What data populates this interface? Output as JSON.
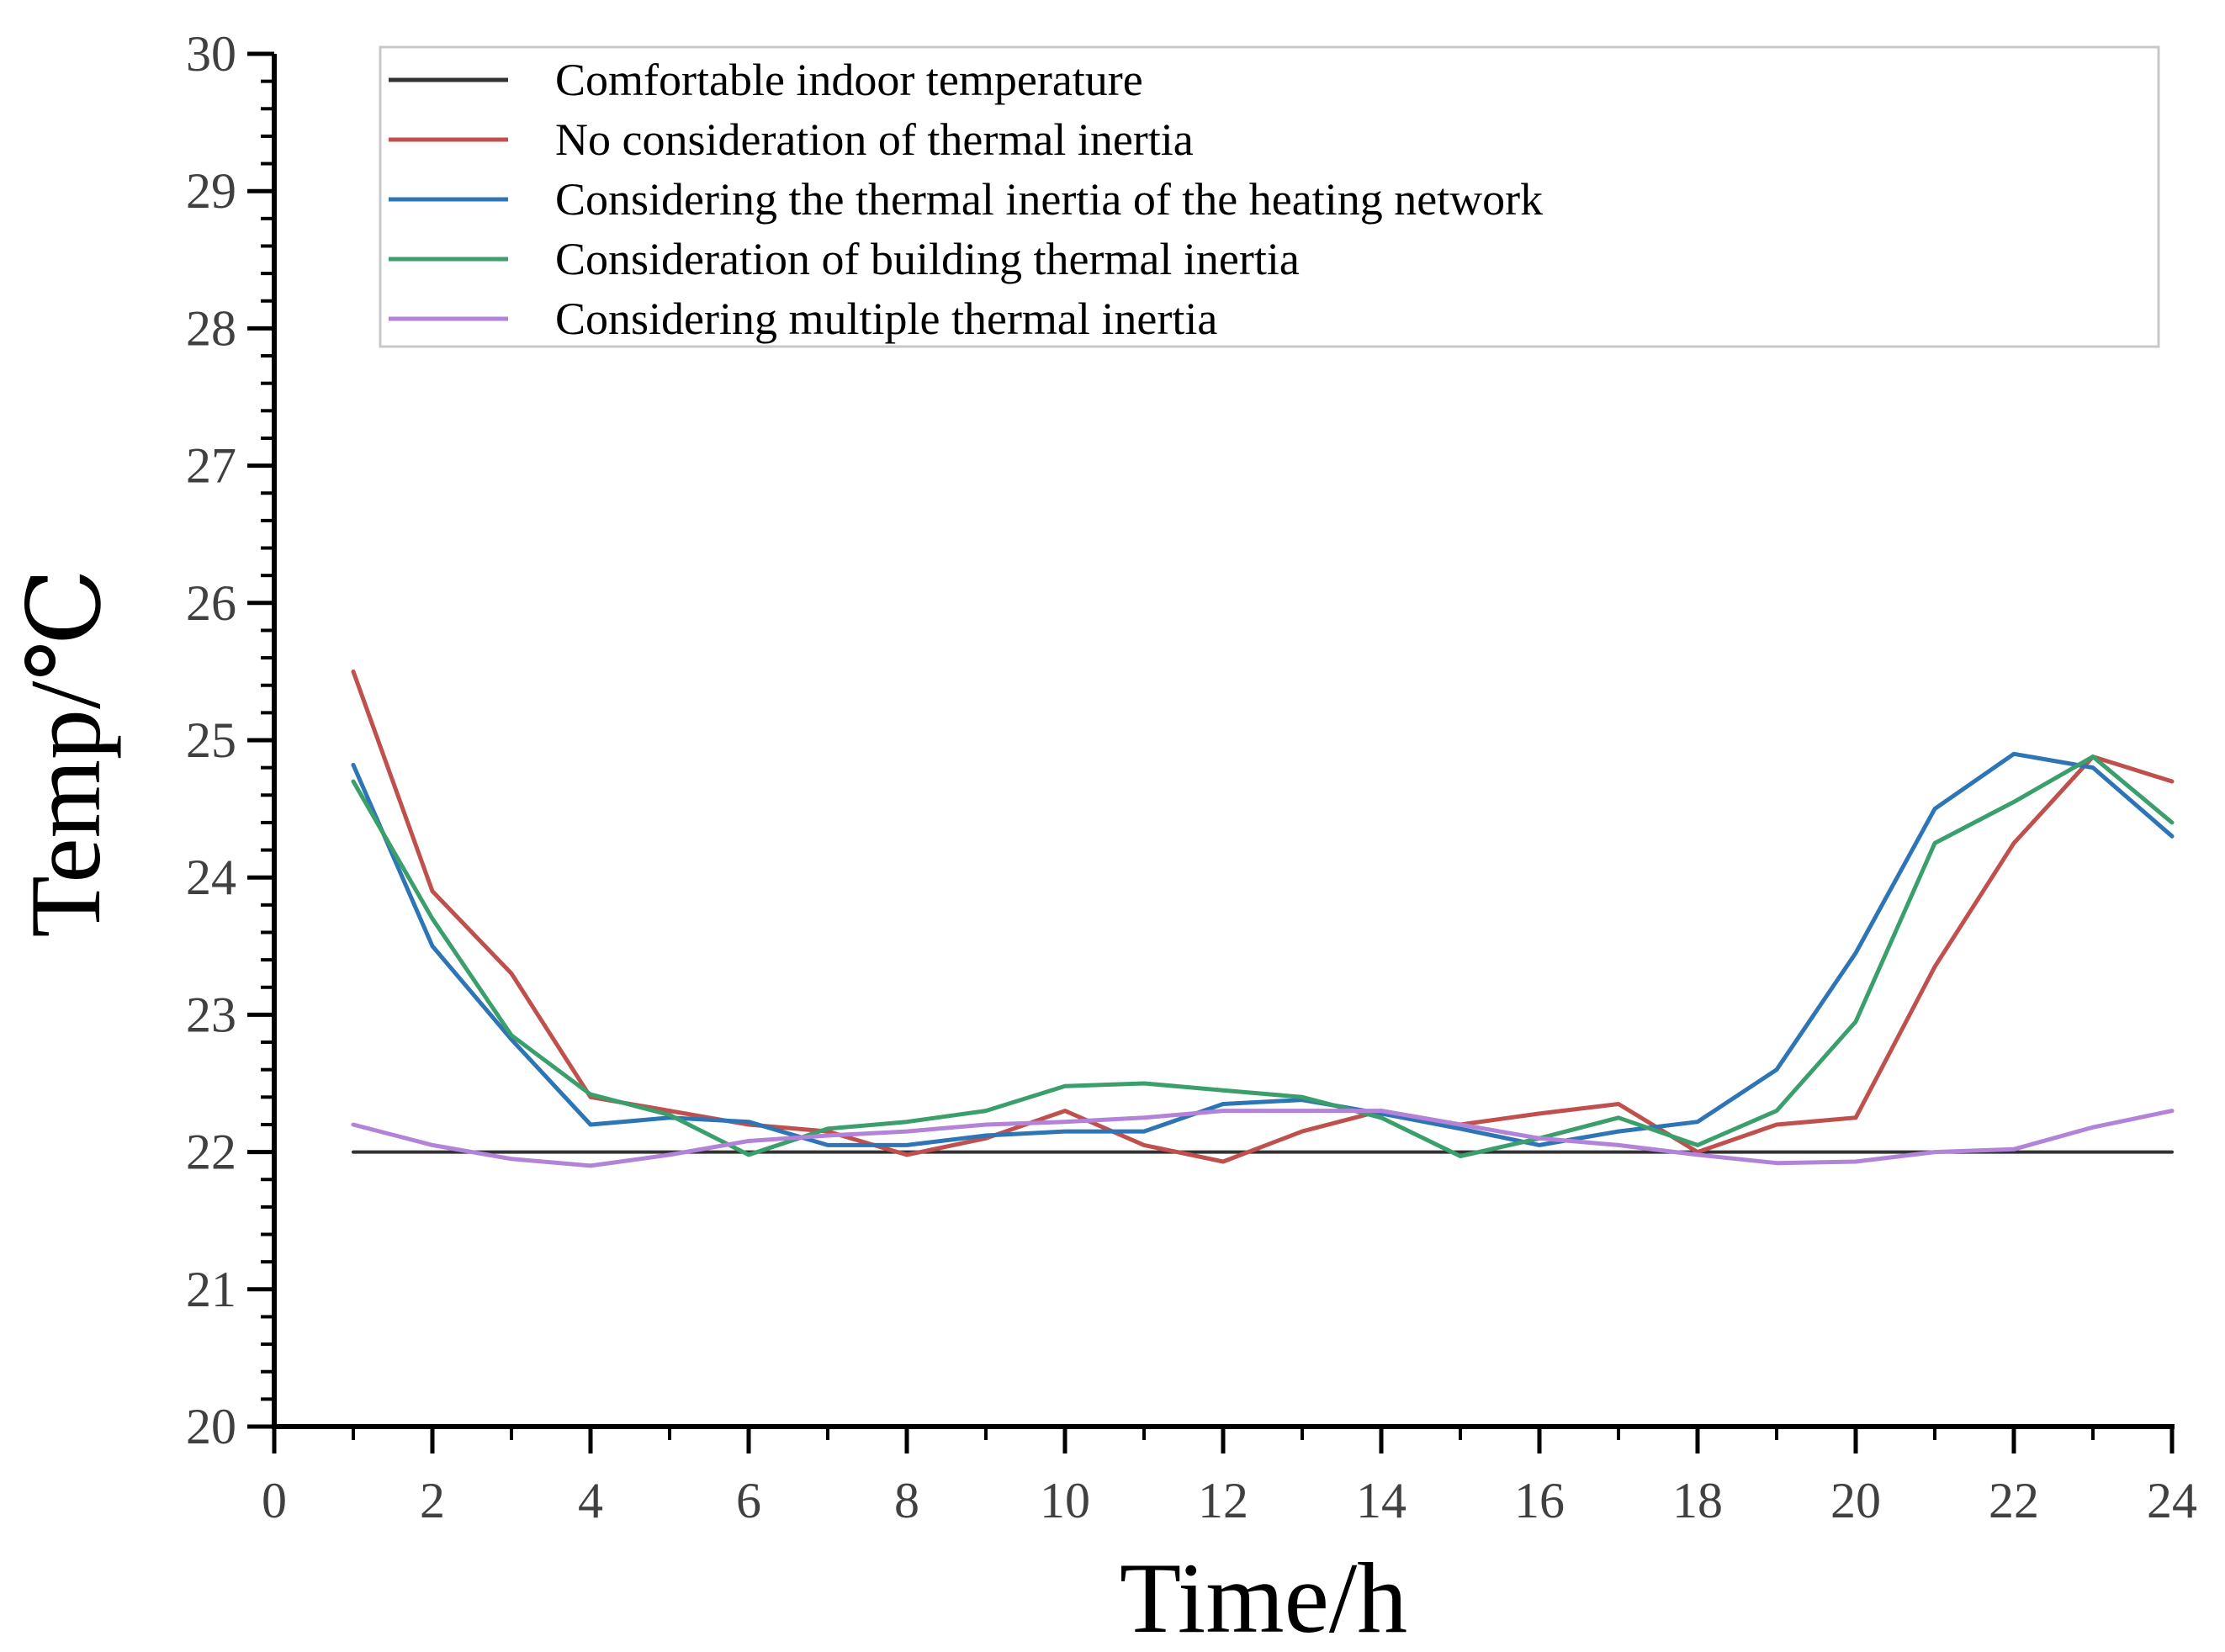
{
  "chart_data": {
    "type": "line",
    "title": "",
    "xlabel": "Time/h",
    "ylabel": "Temp/℃",
    "xlim": [
      0,
      24
    ],
    "ylim": [
      20,
      30
    ],
    "x_ticks": [
      "0",
      "2",
      "4",
      "6",
      "8",
      "10",
      "12",
      "14",
      "16",
      "18",
      "20",
      "22",
      "24"
    ],
    "y_ticks": [
      "20",
      "21",
      "22",
      "23",
      "24",
      "25",
      "26",
      "27",
      "28",
      "29",
      "30"
    ],
    "grid": false,
    "legend_position": "top",
    "x": [
      1,
      2,
      3,
      4,
      5,
      6,
      7,
      8,
      9,
      10,
      11,
      12,
      13,
      14,
      15,
      16,
      17,
      18,
      19,
      20,
      21,
      22,
      23,
      24
    ],
    "series": [
      {
        "name": "Comfortable indoor temperature",
        "color": "#333333",
        "values": [
          22,
          22,
          22,
          22,
          22,
          22,
          22,
          22,
          22,
          22,
          22,
          22,
          22,
          22,
          22,
          22,
          22,
          22,
          22,
          22,
          22,
          22,
          22,
          22
        ]
      },
      {
        "name": "No consideration of thermal inertia",
        "color": "#c0504d",
        "values": [
          25.5,
          23.9,
          23.3,
          22.4,
          22.3,
          22.2,
          22.15,
          21.98,
          22.1,
          22.3,
          22.05,
          21.93,
          22.15,
          22.3,
          22.2,
          22.28,
          22.35,
          22.0,
          22.2,
          22.25,
          23.35,
          24.25,
          24.88,
          24.7
        ]
      },
      {
        "name": "Considering the thermal inertia of the heating network",
        "color": "#2e75b6",
        "values": [
          24.82,
          23.5,
          22.82,
          22.2,
          22.25,
          22.22,
          22.05,
          22.05,
          22.12,
          22.15,
          22.15,
          22.35,
          22.38,
          22.28,
          22.17,
          22.05,
          22.15,
          22.22,
          22.6,
          23.45,
          24.5,
          24.9,
          24.8,
          24.3
        ]
      },
      {
        "name": "Consideration of building thermal inertia",
        "color": "#3a9f6b",
        "values": [
          24.7,
          23.7,
          22.85,
          22.42,
          22.27,
          21.98,
          22.17,
          22.22,
          22.3,
          22.48,
          22.5,
          22.45,
          22.4,
          22.25,
          21.97,
          22.1,
          22.25,
          22.05,
          22.3,
          22.95,
          24.25,
          24.55,
          24.88,
          24.4
        ]
      },
      {
        "name": "Considering multiple thermal inertia",
        "color": "#b283d8",
        "values": [
          22.2,
          22.05,
          21.95,
          21.9,
          21.98,
          22.08,
          22.12,
          22.15,
          22.2,
          22.22,
          22.25,
          22.3,
          22.3,
          22.3,
          22.2,
          22.1,
          22.05,
          21.98,
          21.92,
          21.93,
          22.0,
          22.02,
          22.18,
          22.3
        ]
      }
    ]
  }
}
